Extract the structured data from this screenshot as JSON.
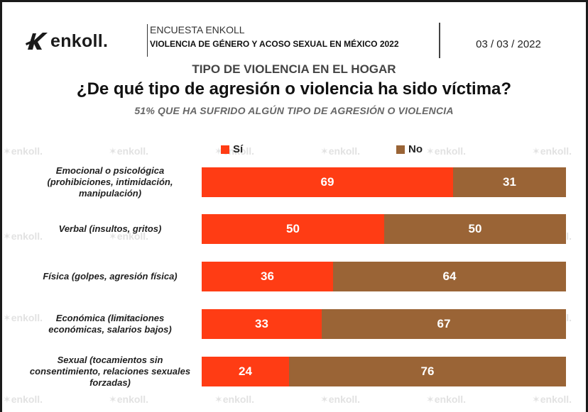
{
  "brand": {
    "name": "enkoll."
  },
  "header": {
    "survey_name": "ENCUESTA ENKOLL",
    "survey_title": "VIOLENCIA DE GÉNERO Y ACOSO SEXUAL EN MÉXICO 2022",
    "date": "03 / 03 / 2022"
  },
  "watermark": "enkoll.",
  "colors": {
    "si": "#ff3c14",
    "no": "#9a6436"
  },
  "chart_data": {
    "type": "bar",
    "orientation": "horizontal",
    "stacked": true,
    "section": "TIPO DE VIOLENCIA EN EL HOGAR",
    "title": "¿De qué tipo de agresión o violencia ha sido víctima?",
    "subtitle": "51% QUE HA SUFRIDO ALGÚN TIPO DE AGRESIÓN O VIOLENCIA",
    "legend_position": "top",
    "xlim": [
      0,
      100
    ],
    "categories": [
      "Emocional o psicológica (prohibiciones, intimidación, manipulación)",
      "Verbal (insultos, gritos)",
      "Física (golpes, agresión física)",
      "Económica (limitaciones económicas, salarios bajos)",
      "Sexual (tocamientos sin consentimiento, relaciones sexuales forzadas)"
    ],
    "series": [
      {
        "name": "Sí",
        "values": [
          69,
          50,
          36,
          33,
          24
        ]
      },
      {
        "name": "No",
        "values": [
          31,
          50,
          64,
          67,
          76
        ]
      }
    ]
  }
}
